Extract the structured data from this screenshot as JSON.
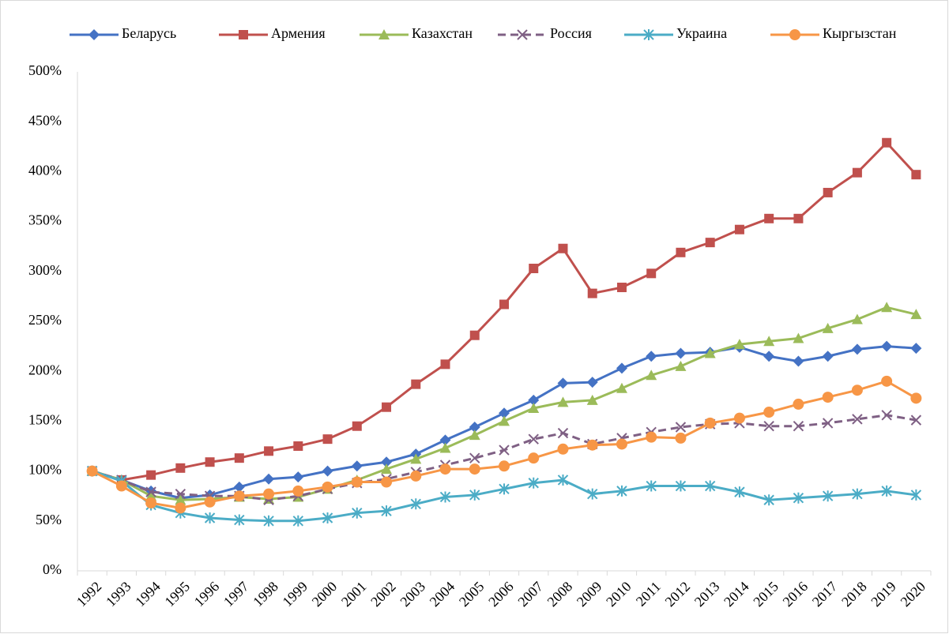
{
  "chart_data": {
    "type": "line",
    "categories": [
      "1992",
      "1993",
      "1994",
      "1995",
      "1996",
      "1997",
      "1998",
      "1999",
      "2000",
      "2001",
      "2002",
      "2003",
      "2004",
      "2005",
      "2006",
      "2007",
      "2008",
      "2009",
      "2010",
      "2011",
      "2012",
      "2013",
      "2014",
      "2015",
      "2016",
      "2017",
      "2018",
      "2019",
      "2020"
    ],
    "series": [
      {
        "name": "Беларусь",
        "color": "#4472c4",
        "marker": "diamond",
        "dash": false,
        "values": [
          100,
          91,
          80,
          73,
          76,
          84,
          92,
          94,
          100,
          105,
          109,
          117,
          131,
          144,
          158,
          171,
          188,
          189,
          203,
          215,
          218,
          219,
          224,
          215,
          210,
          215,
          222,
          225,
          223
        ]
      },
      {
        "name": "Армения",
        "color": "#c0504d",
        "marker": "square",
        "dash": false,
        "values": [
          100,
          91,
          96,
          103,
          109,
          113,
          120,
          125,
          132,
          145,
          164,
          187,
          207,
          236,
          267,
          303,
          323,
          278,
          284,
          298,
          319,
          329,
          342,
          353,
          353,
          379,
          399,
          429,
          397
        ]
      },
      {
        "name": "Казахстан",
        "color": "#9bbb59",
        "marker": "triangle",
        "dash": false,
        "values": [
          100,
          91,
          75,
          71,
          72,
          74,
          72,
          74,
          82,
          91,
          102,
          112,
          123,
          136,
          150,
          163,
          169,
          171,
          183,
          196,
          205,
          218,
          227,
          230,
          233,
          243,
          252,
          264,
          257
        ]
      },
      {
        "name": "Россия",
        "color": "#7f6084",
        "marker": "x",
        "dash": true,
        "values": [
          100,
          91,
          79,
          77,
          75,
          75,
          71,
          75,
          82,
          88,
          92,
          99,
          106,
          113,
          121,
          132,
          138,
          127,
          133,
          139,
          144,
          147,
          148,
          145,
          145,
          148,
          152,
          156,
          151
        ]
      },
      {
        "name": "Украина",
        "color": "#4bacc6",
        "marker": "star",
        "dash": false,
        "values": [
          100,
          90,
          66,
          58,
          53,
          51,
          50,
          50,
          53,
          58,
          60,
          67,
          74,
          76,
          82,
          88,
          91,
          77,
          80,
          85,
          85,
          85,
          79,
          71,
          73,
          75,
          77,
          80,
          76
        ]
      },
      {
        "name": "Кыргызстан",
        "color": "#f79646",
        "marker": "circle",
        "dash": false,
        "values": [
          100,
          85,
          68,
          63,
          69,
          75,
          77,
          80,
          84,
          89,
          89,
          95,
          102,
          102,
          105,
          113,
          122,
          126,
          127,
          134,
          133,
          148,
          153,
          159,
          167,
          174,
          181,
          190,
          173
        ]
      }
    ],
    "ylim": [
      0,
      500
    ],
    "yticks": [
      {
        "value": 0,
        "label": "0%"
      },
      {
        "value": 50,
        "label": "50%"
      },
      {
        "value": 100,
        "label": "100%"
      },
      {
        "value": 150,
        "label": "150%"
      },
      {
        "value": 200,
        "label": "200%"
      },
      {
        "value": 250,
        "label": "250%"
      },
      {
        "value": 300,
        "label": "300%"
      },
      {
        "value": 350,
        "label": "350%"
      },
      {
        "value": 400,
        "label": "400%"
      },
      {
        "value": 450,
        "label": "450%"
      },
      {
        "value": 500,
        "label": "500%"
      }
    ],
    "legend": "top"
  }
}
